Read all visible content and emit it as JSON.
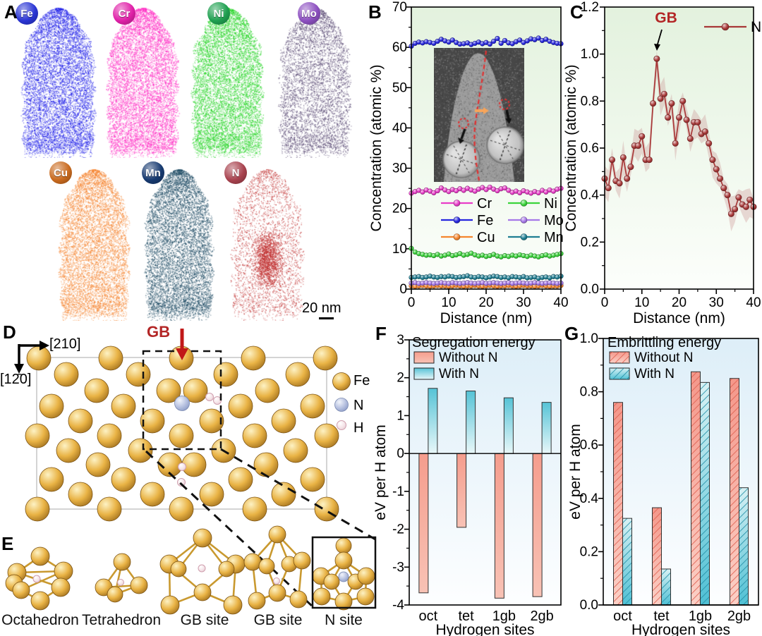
{
  "panels": {
    "A": {
      "label": "A",
      "scale_bar": "20 nm",
      "elements": [
        {
          "symbol": "Fe",
          "badge_color": "#2a35d4",
          "cloud_color": "#1f1fe8"
        },
        {
          "symbol": "Cr",
          "badge_color": "#e020a8",
          "cloud_color": "#ff2ec4"
        },
        {
          "symbol": "Ni",
          "badge_color": "#1fa050",
          "cloud_color": "#25d425"
        },
        {
          "symbol": "Mo",
          "badge_color": "#8c4fc0",
          "cloud_color": "#554570"
        },
        {
          "symbol": "Cu",
          "badge_color": "#c96a1e",
          "cloud_color": "#f5832e"
        },
        {
          "symbol": "Mn",
          "badge_color": "#173a70",
          "cloud_color": "#1d4a63"
        },
        {
          "symbol": "N",
          "badge_color": "#a8424e",
          "cloud_color": "#c23636"
        }
      ]
    },
    "B": {
      "label": "B"
    },
    "C": {
      "label": "C"
    },
    "D": {
      "label": "D",
      "gb_label": "GB",
      "dir_h": "[210]",
      "dir_v": "[12̄0]",
      "legend": [
        {
          "name": "Fe",
          "color": "#d9a239"
        },
        {
          "name": "N",
          "color": "#a9b3d6"
        },
        {
          "name": "H",
          "color": "#f2dde2"
        }
      ]
    },
    "E": {
      "label": "E",
      "sites": [
        "Octahedron",
        "Tetrahedron",
        "GB site",
        "GB site",
        "N site"
      ]
    },
    "F": {
      "label": "F"
    },
    "G": {
      "label": "G"
    }
  },
  "chart_data": [
    {
      "panel": "B",
      "type": "line",
      "title": "",
      "xlabel": "Distance (nm)",
      "ylabel": "Concentration (atomic %)",
      "xlim": [
        0,
        40
      ],
      "ylim": [
        0,
        70
      ],
      "xticks": [
        "0",
        "10",
        "20",
        "30",
        "40"
      ],
      "yticks": [
        "0",
        "10",
        "20",
        "30",
        "40",
        "50",
        "60",
        "70"
      ],
      "grid": false,
      "legend_position": "inside lower-middle, 2 columns",
      "legend_rows": [
        [
          "Cr",
          "Ni"
        ],
        [
          "Fe",
          "Mo"
        ],
        [
          "Cu",
          "Mn"
        ]
      ],
      "bg_gradient": [
        "#e3f2de",
        "#fcfefb"
      ],
      "x_start": 0,
      "x_step": 1,
      "series": [
        {
          "name": "Cu",
          "color": "#f5862d",
          "values": [
            0.8,
            0.7,
            0.8,
            0.9,
            0.8,
            0.7,
            0.8,
            0.9,
            0.8,
            0.8,
            0.7,
            0.8,
            0.9,
            0.8,
            0.7,
            0.8,
            0.8,
            0.9,
            0.8,
            0.7,
            0.8,
            0.9,
            0.8,
            0.7,
            0.8,
            0.8,
            0.9,
            0.8,
            0.7,
            0.8,
            0.9,
            0.8,
            0.8,
            0.7,
            0.8,
            0.9,
            0.8,
            0.7,
            0.8,
            0.8,
            0.9
          ]
        },
        {
          "name": "Mo",
          "color": "#a678e8",
          "values": [
            1.5,
            1.6,
            1.4,
            1.5,
            1.6,
            1.5,
            1.4,
            1.5,
            1.6,
            1.5,
            1.4,
            1.6,
            1.5,
            1.4,
            1.5,
            1.6,
            1.5,
            1.4,
            1.5,
            1.6,
            1.4,
            1.5,
            1.6,
            1.5,
            1.4,
            1.5,
            1.6,
            1.4,
            1.5,
            1.6,
            1.5,
            1.4,
            1.5,
            1.6,
            1.5,
            1.4,
            1.5,
            1.6,
            1.5,
            1.4,
            1.5
          ]
        },
        {
          "name": "Mn",
          "color": "#1f7f93",
          "values": [
            2.9,
            3.0,
            3.1,
            2.9,
            3.0,
            3.2,
            3.0,
            2.9,
            3.1,
            3.0,
            3.2,
            3.1,
            2.9,
            3.0,
            3.1,
            3.3,
            3.0,
            2.9,
            3.1,
            3.0,
            2.8,
            3.0,
            3.2,
            3.1,
            2.9,
            3.0,
            2.8,
            3.1,
            3.0,
            2.9,
            3.1,
            2.8,
            2.9,
            3.0,
            2.7,
            2.9,
            3.0,
            2.8,
            3.1,
            3.0,
            3.2
          ]
        },
        {
          "name": "Ni",
          "color": "#3bd43b",
          "values": [
            10.1,
            9.2,
            8.8,
            8.6,
            8.4,
            8.5,
            8.3,
            8.6,
            8.2,
            8.4,
            8.7,
            8.3,
            8.5,
            8.8,
            8.4,
            8.6,
            8.9,
            8.5,
            8.2,
            8.4,
            8.1,
            8.3,
            8.6,
            8.2,
            8.0,
            8.3,
            8.1,
            8.4,
            8.2,
            8.5,
            8.3,
            8.1,
            8.4,
            8.2,
            8.0,
            8.3,
            8.5,
            8.2,
            8.4,
            8.6,
            8.8
          ]
        },
        {
          "name": "Cr",
          "color": "#e83cc8",
          "values": [
            23.8,
            24.2,
            24.5,
            24.1,
            24.6,
            24.3,
            23.9,
            24.4,
            25.1,
            24.6,
            24.2,
            24.7,
            24.4,
            24.9,
            24.5,
            25.0,
            24.6,
            24.3,
            24.8,
            25.2,
            24.7,
            25.3,
            24.8,
            24.4,
            24.9,
            25.1,
            24.5,
            24.0,
            24.3,
            23.9,
            24.4,
            24.1,
            23.8,
            24.2,
            23.9,
            24.5,
            24.1,
            24.6,
            24.3,
            24.8,
            25.0
          ]
        },
        {
          "name": "Fe",
          "color": "#2626df",
          "values": [
            60.3,
            61.0,
            61.3,
            61.1,
            61.4,
            61.2,
            61.0,
            61.5,
            62.0,
            61.6,
            61.3,
            61.8,
            61.2,
            60.8,
            60.9,
            61.1,
            60.7,
            61.0,
            61.3,
            60.9,
            61.2,
            60.8,
            61.5,
            62.2,
            61.0,
            61.7,
            61.1,
            60.9,
            61.4,
            61.8,
            61.2,
            61.6,
            62.1,
            61.9,
            62.3,
            61.7,
            62.0,
            61.5,
            61.2,
            61.0,
            60.9
          ]
        }
      ],
      "inset": "grain-boundary TEM image of needle tip with red dashed GB line, orange arrow, two red dashed circles and two magnified round insets"
    },
    {
      "panel": "C",
      "type": "line",
      "title": "",
      "xlabel": "Distance (nm)",
      "ylabel": "Concentration (atomic %)",
      "xlim": [
        0,
        40
      ],
      "ylim": [
        0,
        1.2
      ],
      "xticks": [
        "0",
        "10",
        "20",
        "30",
        "40"
      ],
      "yticks": [
        "0.0",
        "0.2",
        "0.4",
        "0.6",
        "0.8",
        "1.0",
        "1.2"
      ],
      "grid": false,
      "legend_position": "inside top-right",
      "bg_gradient": [
        "#e3f2de",
        "#fcfefb"
      ],
      "annotation": {
        "label": "GB",
        "x": 14,
        "color": "#b32626"
      },
      "x_start": 0,
      "x_step": 1,
      "band_halfwidth": 0.055,
      "series": [
        {
          "name": "N",
          "color": "#a83838",
          "values": [
            0.47,
            0.43,
            0.55,
            0.46,
            0.45,
            0.56,
            0.47,
            0.52,
            0.61,
            0.61,
            0.65,
            0.55,
            0.55,
            0.79,
            0.98,
            0.81,
            0.83,
            0.73,
            0.79,
            0.62,
            0.73,
            0.8,
            0.72,
            0.64,
            0.71,
            0.71,
            0.66,
            0.67,
            0.62,
            0.55,
            0.51,
            0.47,
            0.43,
            0.4,
            0.32,
            0.34,
            0.39,
            0.36,
            0.35,
            0.38,
            0.35
          ]
        }
      ]
    },
    {
      "panel": "F",
      "type": "bar",
      "title": "Segregation energy",
      "xlabel": "Hydrogen sites",
      "ylabel": "eV per H atom",
      "categories": [
        "oct",
        "tet",
        "1gb",
        "2gb"
      ],
      "ylim": [
        -4,
        3
      ],
      "yticks": [
        "-4",
        "-3",
        "-2",
        "-1",
        "0",
        "1",
        "2",
        "3"
      ],
      "hatched": false,
      "bg_gradient": [
        "#ddeef8",
        "#fdfeff"
      ],
      "series": [
        {
          "name": "Without N",
          "color_top": "#f59d8d",
          "color_bottom": "#f8c2b5",
          "values": [
            -3.68,
            -1.95,
            -3.82,
            -3.78
          ]
        },
        {
          "name": "With N",
          "color_top": "#56c3d6",
          "color_bottom": "#e8f7f9",
          "values": [
            1.72,
            1.65,
            1.47,
            1.35
          ]
        }
      ]
    },
    {
      "panel": "G",
      "type": "bar",
      "title": "Embrittling energy",
      "xlabel": "Hydrogen sites",
      "ylabel": "eV per H atom",
      "categories": [
        "oct",
        "tet",
        "1gb",
        "2gb"
      ],
      "ylim": [
        0,
        1.0
      ],
      "yticks": [
        "0.0",
        "0.2",
        "0.4",
        "0.6",
        "0.8",
        "1.0"
      ],
      "hatched": true,
      "bg_gradient": [
        "#ddeef8",
        "#fdfeff"
      ],
      "series": [
        {
          "name": "Without N",
          "color_top": "#f4978a",
          "color_bottom": "#fbd0c6",
          "hatch_color": "#e06050",
          "values": [
            0.76,
            0.365,
            0.875,
            0.85
          ]
        },
        {
          "name": "With N",
          "color_top": "#d8f1f4",
          "color_bottom": "#4fc0d4",
          "hatch_color": "#2391a8",
          "values": [
            0.325,
            0.135,
            0.835,
            0.44
          ]
        }
      ]
    }
  ]
}
